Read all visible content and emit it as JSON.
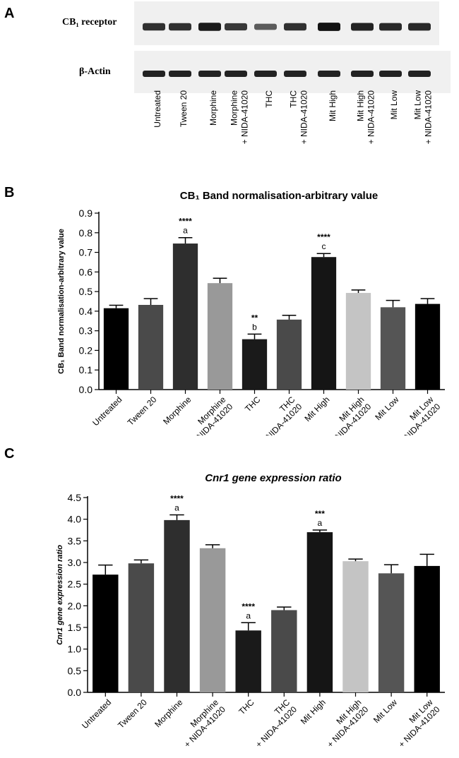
{
  "panel_a": {
    "letter": "A",
    "row1_label": "CB₁ receptor",
    "row2_label": "β-Actin",
    "lanes": [
      [
        "Untreated"
      ],
      [
        "Tween 20"
      ],
      [
        "Morphine"
      ],
      [
        "Morphine",
        "+ NIDA-41020"
      ],
      [
        "THC"
      ],
      [
        "THC",
        "+ NIDA-41020"
      ],
      [
        "Mit High"
      ],
      [
        "Mit High",
        "+ NIDA-41020"
      ],
      [
        "Mit Low"
      ],
      [
        "Mit Low",
        "+ NIDA-41020"
      ]
    ],
    "row1_band_intensity": [
      0.75,
      0.75,
      0.9,
      0.7,
      0.45,
      0.75,
      0.95,
      0.85,
      0.8,
      0.8
    ],
    "row2_band_intensity": [
      0.85,
      0.85,
      0.85,
      0.85,
      0.85,
      0.85,
      0.85,
      0.85,
      0.85,
      0.85
    ]
  },
  "chart_data": [
    {
      "panel": "B",
      "type": "bar",
      "title": "CB₁ Band normalisation-arbitrary value",
      "ylabel": "CB₁ Band normalisation-arbitrary value",
      "xlabel": "",
      "ylim": [
        0,
        0.9
      ],
      "yticks": [
        "0.0",
        "0.1",
        "0.2",
        "0.3",
        "0.4",
        "0.5",
        "0.6",
        "0.7",
        "0.8",
        "0.9"
      ],
      "categories": [
        [
          "Untreated"
        ],
        [
          "Tween 20"
        ],
        [
          "Morphine"
        ],
        [
          "Morphine",
          "+ NIDA-41020"
        ],
        [
          "THC"
        ],
        [
          "THC",
          "+ NIDA-41020"
        ],
        [
          "Mit High"
        ],
        [
          "Mit High",
          "+ NIDA-41020"
        ],
        [
          "Mit Low"
        ],
        [
          "Mit Low",
          "+ NIDA-41020"
        ]
      ],
      "values": [
        0.415,
        0.432,
        0.745,
        0.543,
        0.257,
        0.357,
        0.676,
        0.493,
        0.42,
        0.437
      ],
      "errors": [
        0.015,
        0.032,
        0.03,
        0.025,
        0.026,
        0.022,
        0.018,
        0.015,
        0.035,
        0.027
      ],
      "colors": [
        "#000000",
        "#4a4a4a",
        "#2e2e2e",
        "#999999",
        "#1a1a1a",
        "#4a4a4a",
        "#151515",
        "#c4c4c4",
        "#555555",
        "#000000"
      ],
      "significance": [
        "",
        "",
        "****",
        "",
        "**",
        "",
        "****",
        "",
        "",
        ""
      ],
      "letters": [
        "",
        "",
        "a",
        "",
        "b",
        "",
        "c",
        "",
        "",
        ""
      ]
    },
    {
      "panel": "C",
      "type": "bar",
      "title": "Cnr1 gene expression ratio",
      "ylabel": "Cnr1 gene expression ratio",
      "xlabel": "",
      "ylim": [
        0,
        4.5
      ],
      "yticks": [
        "0.0",
        "0.5",
        "1.0",
        "1.5",
        "2.0",
        "2.5",
        "3.0",
        "3.5",
        "4.0",
        "4.5"
      ],
      "categories": [
        [
          "Untreated"
        ],
        [
          "Tween 20"
        ],
        [
          "Morphine"
        ],
        [
          "Morphine",
          "+ NIDA-41020"
        ],
        [
          "THC"
        ],
        [
          "THC",
          "+ NIDA-41020"
        ],
        [
          "Mit High"
        ],
        [
          "Mit High",
          "+ NIDA-41020"
        ],
        [
          "Mit Low"
        ],
        [
          "Mit Low",
          "+ NIDA-41020"
        ]
      ],
      "values": [
        2.72,
        2.98,
        3.98,
        3.33,
        1.43,
        1.9,
        3.7,
        3.03,
        2.75,
        2.92
      ],
      "errors": [
        0.22,
        0.08,
        0.12,
        0.08,
        0.18,
        0.07,
        0.05,
        0.05,
        0.2,
        0.27
      ],
      "colors": [
        "#000000",
        "#4a4a4a",
        "#2e2e2e",
        "#999999",
        "#1a1a1a",
        "#4a4a4a",
        "#151515",
        "#c4c4c4",
        "#555555",
        "#000000"
      ],
      "significance": [
        "",
        "",
        "****",
        "",
        "****",
        "",
        "***",
        "",
        "",
        ""
      ],
      "letters": [
        "",
        "",
        "a",
        "",
        "a",
        "",
        "a",
        "",
        "",
        ""
      ]
    }
  ]
}
